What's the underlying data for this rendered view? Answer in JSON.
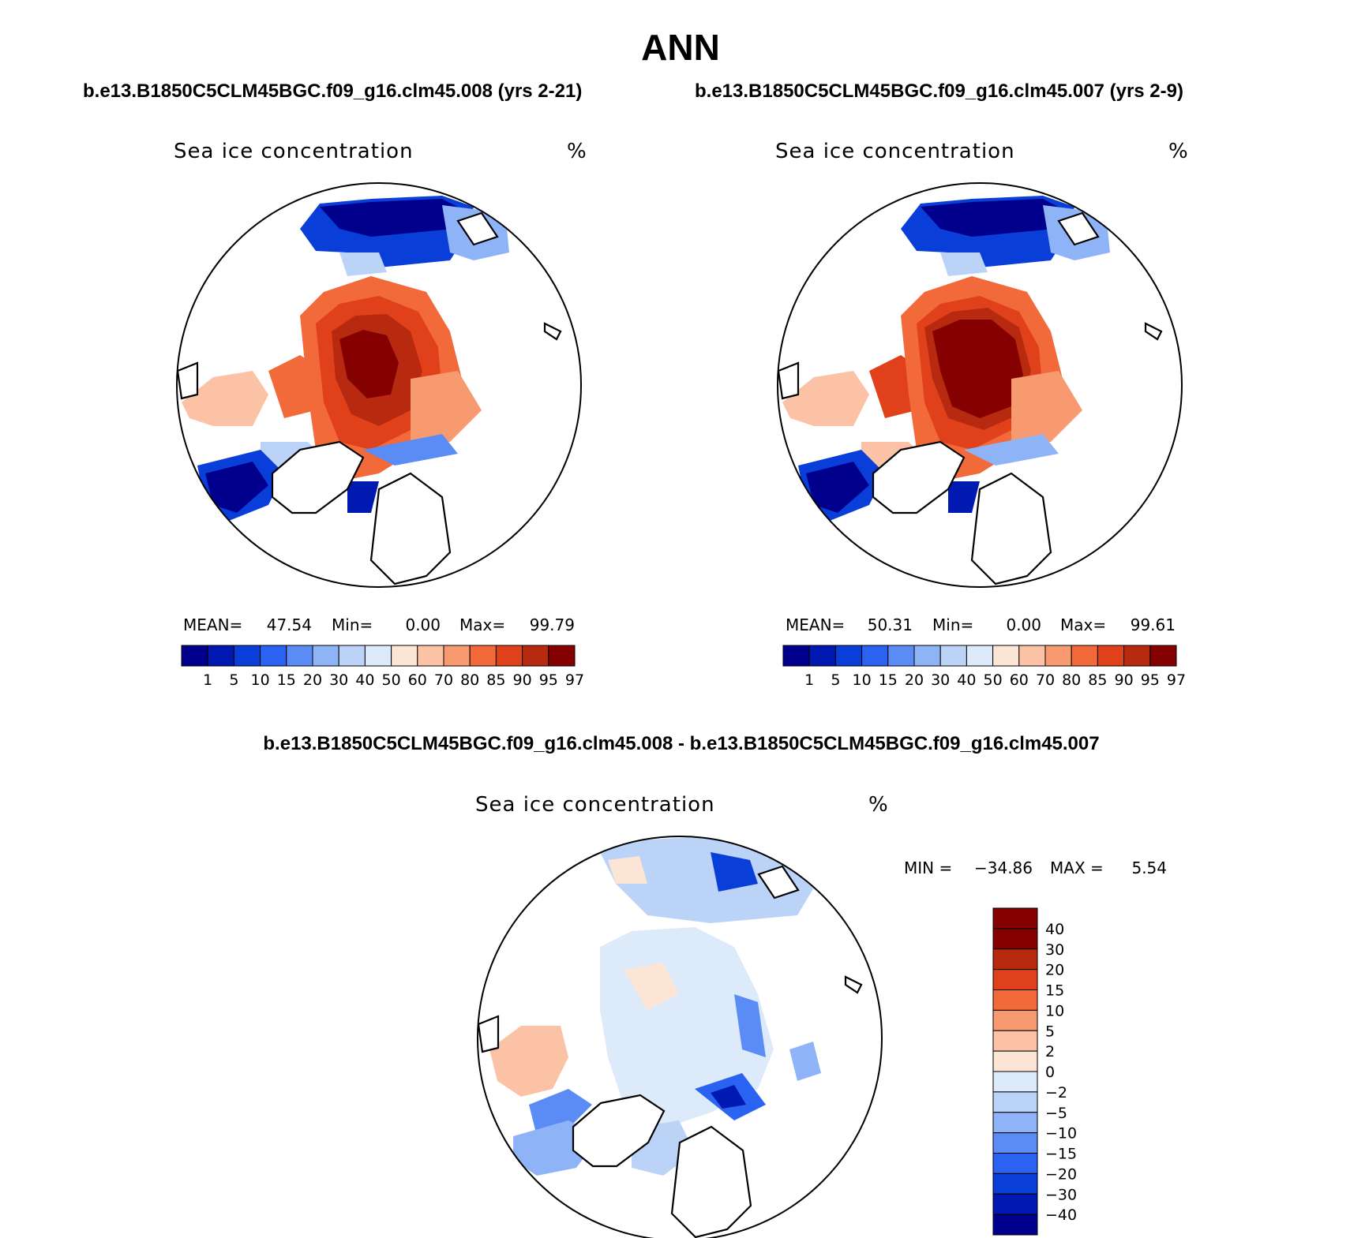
{
  "title": "ANN",
  "case_titles": {
    "left": "b.e13.B1850C5CLM45BGC.f09_g16.clm45.008 (yrs 2-21)",
    "right": "b.e13.B1850C5CLM45BGC.f09_g16.clm45.007 (yrs 2-9)",
    "diff": "b.e13.B1850C5CLM45BGC.f09_g16.clm45.008 - b.e13.B1850C5CLM45BGC.f09_g16.clm45.007"
  },
  "panels": {
    "left": {
      "variable": "Sea ice concentration",
      "units": "%",
      "mean_label": "MEAN=",
      "mean": "47.54",
      "min_label": "Min=",
      "min": "0.00",
      "max_label": "Max=",
      "max": "99.79"
    },
    "right": {
      "variable": "Sea ice concentration",
      "units": "%",
      "mean_label": "MEAN=",
      "mean": "50.31",
      "min_label": "Min=",
      "min": "0.00",
      "max_label": "Max=",
      "max": "99.61"
    },
    "diff": {
      "variable": "Sea ice concentration",
      "units": "%",
      "min_label": "MIN =",
      "min": "−34.86",
      "max_label": "MAX =",
      "max": "5.54"
    }
  },
  "colorbar_levels": [
    "1",
    "5",
    "10",
    "15",
    "20",
    "30",
    "40",
    "50",
    "60",
    "70",
    "80",
    "85",
    "90",
    "95",
    "97"
  ],
  "colorbar_colors": [
    "#00008c",
    "#0019b0",
    "#0a3ed8",
    "#2a62f2",
    "#5b8cf5",
    "#8fb3f7",
    "#bcd3f8",
    "#ddeafa",
    "#fde5d5",
    "#fbc2a5",
    "#f89a70",
    "#f26a3a",
    "#e0401a",
    "#b82a10",
    "#850000"
  ],
  "diff_levels": [
    "40",
    "30",
    "20",
    "15",
    "10",
    "5",
    "2",
    "0",
    "−2",
    "−5",
    "−10",
    "−15",
    "−20",
    "−30",
    "−40"
  ],
  "diff_colors": [
    "#850000",
    "#b82a10",
    "#e0401a",
    "#f26a3a",
    "#f89a70",
    "#fbc2a5",
    "#fde5d5",
    "#ddeafa",
    "#bcd3f8",
    "#8fb3f7",
    "#5b8cf5",
    "#2a62f2",
    "#0a3ed8",
    "#0019b0",
    "#00008c"
  ]
}
